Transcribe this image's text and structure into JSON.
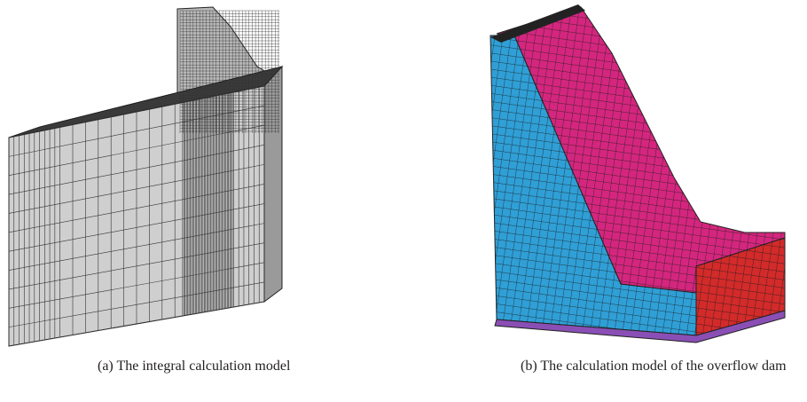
{
  "figures": [
    {
      "caption": "(a) The integral calculation model"
    },
    {
      "caption": "(b) The calculation model of the overflow dam"
    }
  ]
}
